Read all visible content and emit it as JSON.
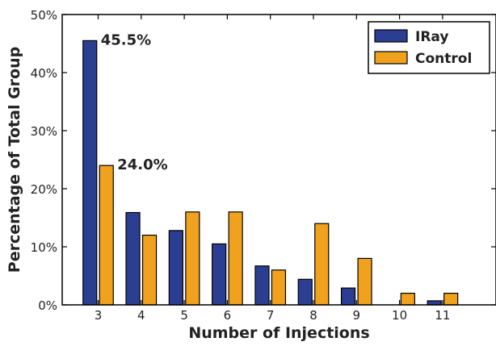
{
  "chart_data": {
    "type": "bar",
    "xlabel": "Number of Injections",
    "ylabel": "Percentage of Total Group",
    "categories": [
      "3",
      "4",
      "5",
      "6",
      "7",
      "8",
      "9",
      "10",
      "11"
    ],
    "series": [
      {
        "name": "IRay",
        "color": "#2b3e91",
        "values": [
          45.5,
          15.9,
          12.8,
          10.5,
          6.7,
          4.4,
          2.9,
          0,
          0.7
        ]
      },
      {
        "name": "Control",
        "color": "#f0a21e",
        "values": [
          24.0,
          12.0,
          16.0,
          16.0,
          6.0,
          14.0,
          8.0,
          2.0,
          2.0
        ]
      }
    ],
    "ylim": [
      0,
      50
    ],
    "yticks": [
      0,
      10,
      20,
      30,
      40,
      50
    ],
    "ytick_labels": [
      "0%",
      "10%",
      "20%",
      "30%",
      "40%",
      "50%"
    ],
    "annotations": [
      {
        "text": "45.5%",
        "series": 0,
        "category": "3"
      },
      {
        "text": "24.0%",
        "series": 1,
        "category": "3"
      }
    ],
    "legend_position": "top-right",
    "grid": false
  }
}
